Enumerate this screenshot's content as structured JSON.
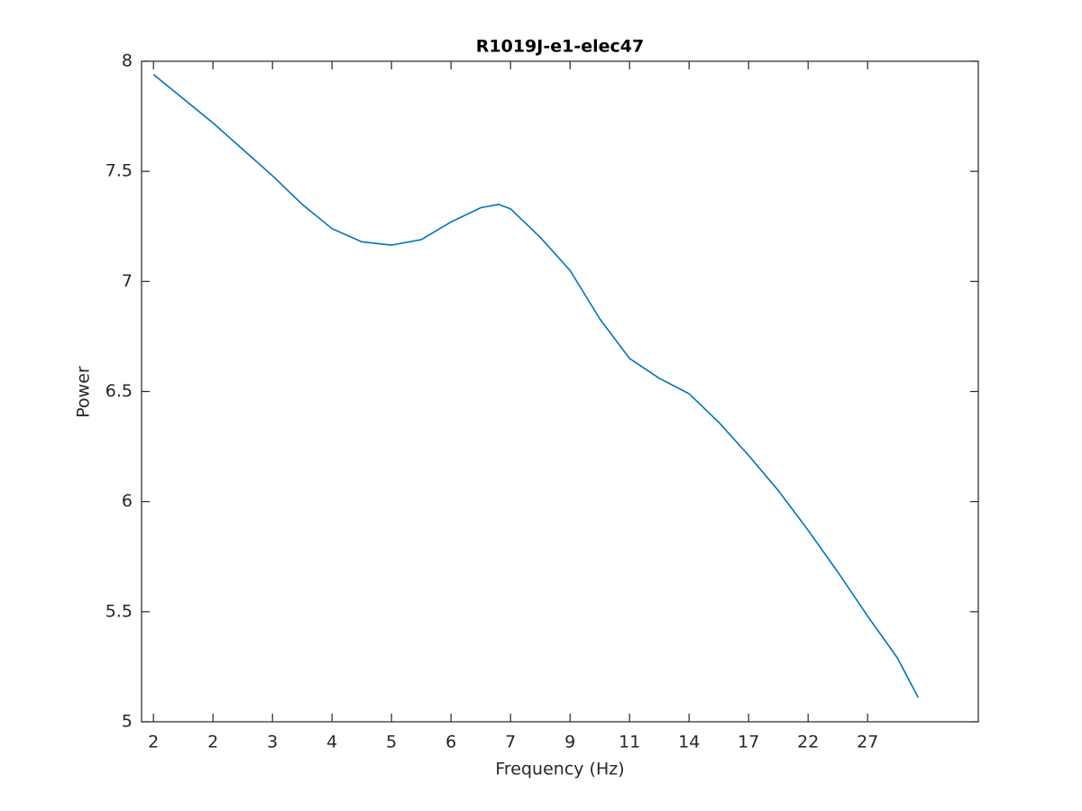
{
  "chart_data": {
    "type": "line",
    "title": "R1019J-e1-elec47",
    "x_label": "Frequency (Hz)",
    "y_label": "Power",
    "x": [
      1,
      1.5,
      2,
      2.5,
      3,
      3.5,
      4,
      4.5,
      5,
      5.5,
      6,
      6.5,
      6.8,
      7,
      7.5,
      8,
      8.5,
      9,
      9.5,
      10,
      10.5,
      11,
      11.5,
      12,
      12.5,
      13,
      13.5,
      13.85
    ],
    "series": [
      {
        "color": "#0072bd",
        "values": [
          7.94,
          7.83,
          7.72,
          7.6,
          7.48,
          7.35,
          7.24,
          7.18,
          7.165,
          7.19,
          7.27,
          7.335,
          7.35,
          7.33,
          7.2,
          7.05,
          6.83,
          6.65,
          6.56,
          6.49,
          6.36,
          6.21,
          6.05,
          5.87,
          5.68,
          5.48,
          5.29,
          5.11
        ]
      }
    ],
    "xlim": [
      0.8,
      14.86
    ],
    "ylim": [
      5,
      8
    ],
    "xticks": [
      {
        "value": 1,
        "label": "2"
      },
      {
        "value": 2,
        "label": "2"
      },
      {
        "value": 3,
        "label": "3"
      },
      {
        "value": 4,
        "label": "4"
      },
      {
        "value": 5,
        "label": "5"
      },
      {
        "value": 6,
        "label": "6"
      },
      {
        "value": 7,
        "label": "7"
      },
      {
        "value": 8,
        "label": "9"
      },
      {
        "value": 9,
        "label": "11"
      },
      {
        "value": 10,
        "label": "14"
      },
      {
        "value": 11,
        "label": "17"
      },
      {
        "value": 12,
        "label": "22"
      },
      {
        "value": 13,
        "label": "27"
      }
    ],
    "yticks": [
      5,
      5.5,
      6,
      6.5,
      7,
      7.5,
      8
    ]
  }
}
